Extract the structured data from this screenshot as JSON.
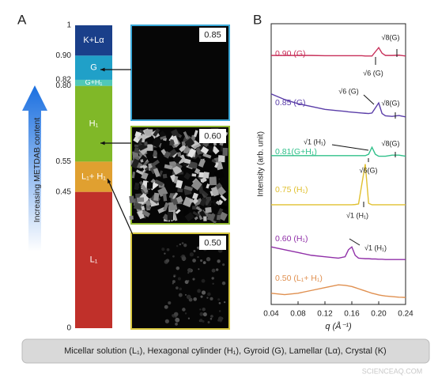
{
  "caption": "Micellar solution (L₁), Hexagonal cylinder (H₁), Gyroid (G), Lamellar (Lα), Crystal (K)",
  "watermark": "SCIENCEAQ.COM",
  "chart_data": [
    {
      "type": "bar",
      "panel": "A",
      "stacked": true,
      "ylabel": "Increasing METDAB content",
      "ylim": [
        0,
        1
      ],
      "yticks": [
        0,
        0.45,
        0.55,
        {
          "value": 0.8,
          "label": "0.80"
        },
        0.82,
        {
          "value": 0.9,
          "label": "0.90"
        },
        1
      ],
      "series": [
        {
          "name": "L₁",
          "color": "#c0302a",
          "values": [
            0.45
          ]
        },
        {
          "name": "L₁+ H₁",
          "color": "#e0a030",
          "values": [
            0.1
          ]
        },
        {
          "name": "H₁",
          "color": "#80b828",
          "values": [
            0.25
          ]
        },
        {
          "name": "G+H₁",
          "color": "#50c8b8",
          "values": [
            0.02
          ]
        },
        {
          "name": "G",
          "color": "#20a0c8",
          "values": [
            0.08
          ]
        },
        {
          "name": "K+Lα",
          "color": "#1a3f8a",
          "values": [
            0.1
          ]
        }
      ],
      "images": [
        {
          "label": "0.85",
          "color": "#3aa8d8"
        },
        {
          "label": "0.60",
          "color": "#90b830"
        },
        {
          "label": "0.50",
          "color": "#d8c840"
        }
      ]
    },
    {
      "type": "line",
      "panel": "B",
      "xlabel": "q (Å⁻¹)",
      "ylabel": "Intensity (arb. unit)",
      "xlim": [
        0.04,
        0.24
      ],
      "xticks": [
        0.04,
        0.08,
        0.12,
        0.16,
        {
          "value": 0.2,
          "label": "0.20"
        },
        0.24
      ],
      "ylim": [
        0,
        100
      ],
      "x": [
        0.04,
        0.06,
        0.08,
        0.1,
        0.12,
        0.14,
        0.15,
        0.155,
        0.16,
        0.165,
        0.17,
        0.175,
        0.18,
        0.185,
        0.19,
        0.195,
        0.2,
        0.205,
        0.21,
        0.22,
        0.23,
        0.24
      ],
      "series": [
        {
          "name": "0.90 (G)",
          "color": "#c8305a",
          "values": [
            88.7,
            88.7,
            88.7,
            88.7,
            88.6,
            88.6,
            88.6,
            88.6,
            88.6,
            88.6,
            88.6,
            88.6,
            88.5,
            88.5,
            88.5,
            90,
            91.5,
            89.5,
            88.7,
            88.7,
            88.8,
            88.5
          ]
        },
        {
          "name": "0.85 (G)",
          "color": "#5a3da8",
          "values": [
            75,
            73,
            71.5,
            70.5,
            69.5,
            69,
            68.8,
            68.6,
            68.5,
            68.4,
            68.3,
            68.2,
            68.1,
            68,
            68.2,
            70,
            71.8,
            68,
            67.2,
            67,
            67.3,
            66.8
          ]
        },
        {
          "name": "0.81(G+H₁)",
          "color": "#30c08a",
          "values": [
            53,
            53,
            53,
            53,
            53,
            53,
            53,
            53,
            53,
            53,
            53,
            53,
            53,
            53.5,
            56,
            53.5,
            52.8,
            52.8,
            52.8,
            53.2,
            53.2,
            52.8
          ]
        },
        {
          "name": "0.75 (H₁)",
          "color": "#e0c030",
          "values": [
            35.5,
            35.5,
            35.5,
            35.5,
            35.5,
            35.5,
            35.5,
            35.5,
            35.5,
            35.6,
            35.8,
            43,
            50,
            36,
            35.5,
            35.5,
            35.5,
            35.5,
            35.5,
            35.5,
            35.5,
            35.5
          ]
        },
        {
          "name": "0.60 (H₁)",
          "color": "#9030a8",
          "values": [
            20.5,
            19.5,
            18.5,
            17.5,
            17,
            16.5,
            17,
            19.5,
            20.5,
            17.5,
            16.5,
            16.4,
            16.3,
            16.3,
            16.2,
            16.2,
            16.1,
            16.1,
            16,
            16,
            16,
            16
          ]
        },
        {
          "name": "0.50 (L₁+ H₁)",
          "color": "#e09050",
          "values": [
            4,
            3.5,
            4,
            5,
            6,
            7,
            6.8,
            6.6,
            6.4,
            6,
            5.6,
            5.2,
            4.8,
            4.4,
            4,
            3.7,
            3.4,
            3.2,
            3,
            2.8,
            2.6,
            2.5
          ]
        }
      ],
      "annotations": [
        "√8(G)",
        "√6 (G)",
        "√6 (G)",
        "√8(G)",
        "√1 (H₁)",
        "√8(G)",
        "√6(G)",
        "√1 (H₁)",
        "√1 (H₁)"
      ]
    }
  ]
}
